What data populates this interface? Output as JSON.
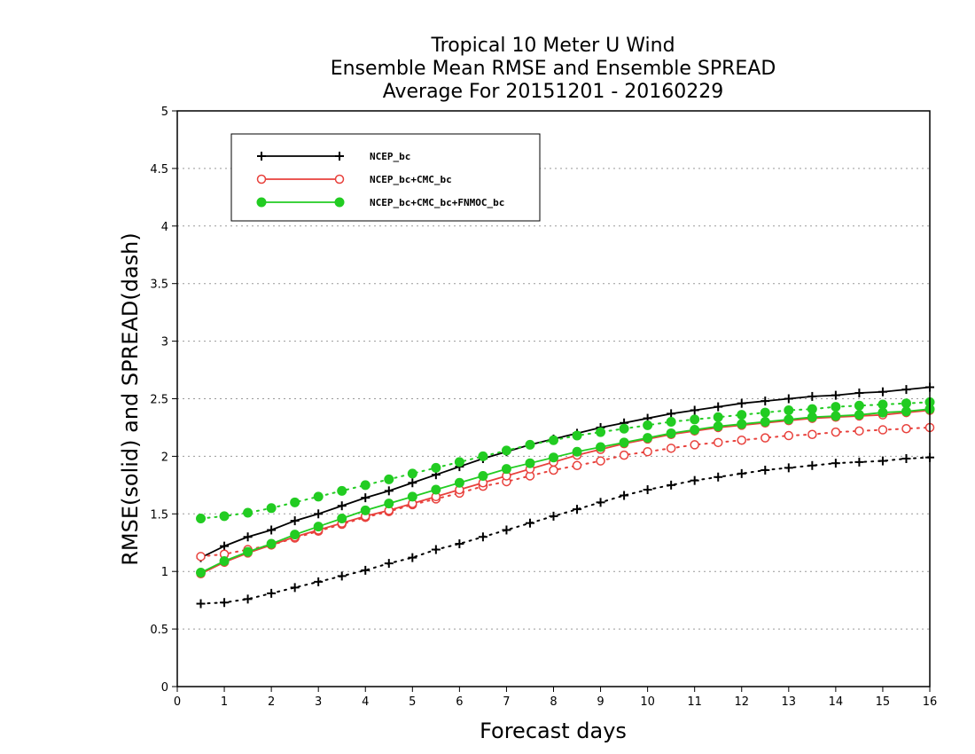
{
  "chart_data": {
    "type": "line",
    "title_lines": [
      "Tropical 10 Meter U Wind",
      "Ensemble Mean RMSE and Ensemble SPREAD",
      "Average For 20151201 - 20160229"
    ],
    "xlabel": "Forecast days",
    "ylabel": "RMSE(solid) and SPREAD(dash)",
    "xlim": [
      0,
      16
    ],
    "ylim": [
      0,
      5
    ],
    "x_ticks": [
      "0",
      "1",
      "2",
      "3",
      "4",
      "5",
      "6",
      "7",
      "8",
      "9",
      "10",
      "11",
      "12",
      "13",
      "14",
      "15",
      "16"
    ],
    "y_ticks": [
      "0",
      "0.5",
      "1",
      "1.5",
      "2",
      "2.5",
      "3",
      "3.5",
      "4",
      "4.5",
      "5"
    ],
    "grid": "horizontal dotted",
    "legend_position": "top-left",
    "x": [
      0.5,
      1,
      1.5,
      2,
      2.5,
      3,
      3.5,
      4,
      4.5,
      5,
      5.5,
      6,
      6.5,
      7,
      7.5,
      8,
      8.5,
      9,
      9.5,
      10,
      10.5,
      11,
      11.5,
      12,
      12.5,
      13,
      13.5,
      14,
      14.5,
      15,
      15.5,
      16
    ],
    "series": [
      {
        "name": "NCEP_bc",
        "color": "#000000",
        "marker": "plus",
        "rmse": [
          1.12,
          1.22,
          1.3,
          1.36,
          1.44,
          1.5,
          1.57,
          1.64,
          1.7,
          1.77,
          1.84,
          1.91,
          1.98,
          2.04,
          2.1,
          2.15,
          2.2,
          2.25,
          2.29,
          2.33,
          2.37,
          2.4,
          2.43,
          2.46,
          2.48,
          2.5,
          2.52,
          2.53,
          2.55,
          2.56,
          2.58,
          2.6
        ],
        "spread": [
          0.72,
          0.73,
          0.76,
          0.81,
          0.86,
          0.91,
          0.96,
          1.01,
          1.07,
          1.12,
          1.19,
          1.24,
          1.3,
          1.36,
          1.42,
          1.48,
          1.54,
          1.6,
          1.66,
          1.71,
          1.75,
          1.79,
          1.82,
          1.85,
          1.88,
          1.9,
          1.92,
          1.94,
          1.95,
          1.96,
          1.98,
          1.99
        ]
      },
      {
        "name": "NCEP_bc+CMC_bc",
        "color": "#e8413c",
        "marker": "open-circle",
        "rmse": [
          0.98,
          1.08,
          1.16,
          1.23,
          1.3,
          1.36,
          1.42,
          1.48,
          1.53,
          1.59,
          1.65,
          1.71,
          1.77,
          1.83,
          1.89,
          1.95,
          2.01,
          2.06,
          2.11,
          2.15,
          2.19,
          2.22,
          2.25,
          2.27,
          2.29,
          2.31,
          2.33,
          2.34,
          2.35,
          2.36,
          2.38,
          2.4
        ],
        "spread": [
          1.13,
          1.15,
          1.19,
          1.23,
          1.29,
          1.35,
          1.41,
          1.47,
          1.52,
          1.58,
          1.63,
          1.68,
          1.74,
          1.78,
          1.83,
          1.88,
          1.92,
          1.96,
          2.01,
          2.04,
          2.07,
          2.1,
          2.12,
          2.14,
          2.16,
          2.18,
          2.19,
          2.21,
          2.22,
          2.23,
          2.24,
          2.25
        ]
      },
      {
        "name": "NCEP_bc+CMC_bc+FNMOC_bc",
        "color": "#22cc22",
        "marker": "filled-circle",
        "rmse": [
          0.99,
          1.09,
          1.17,
          1.24,
          1.32,
          1.39,
          1.46,
          1.53,
          1.59,
          1.65,
          1.71,
          1.77,
          1.83,
          1.89,
          1.94,
          1.99,
          2.04,
          2.08,
          2.12,
          2.16,
          2.2,
          2.23,
          2.26,
          2.28,
          2.3,
          2.32,
          2.34,
          2.35,
          2.36,
          2.38,
          2.39,
          2.41
        ],
        "spread": [
          1.46,
          1.48,
          1.51,
          1.55,
          1.6,
          1.65,
          1.7,
          1.75,
          1.8,
          1.85,
          1.9,
          1.95,
          2.0,
          2.05,
          2.1,
          2.14,
          2.18,
          2.21,
          2.24,
          2.27,
          2.3,
          2.32,
          2.34,
          2.36,
          2.38,
          2.4,
          2.41,
          2.43,
          2.44,
          2.45,
          2.46,
          2.47
        ]
      }
    ]
  }
}
